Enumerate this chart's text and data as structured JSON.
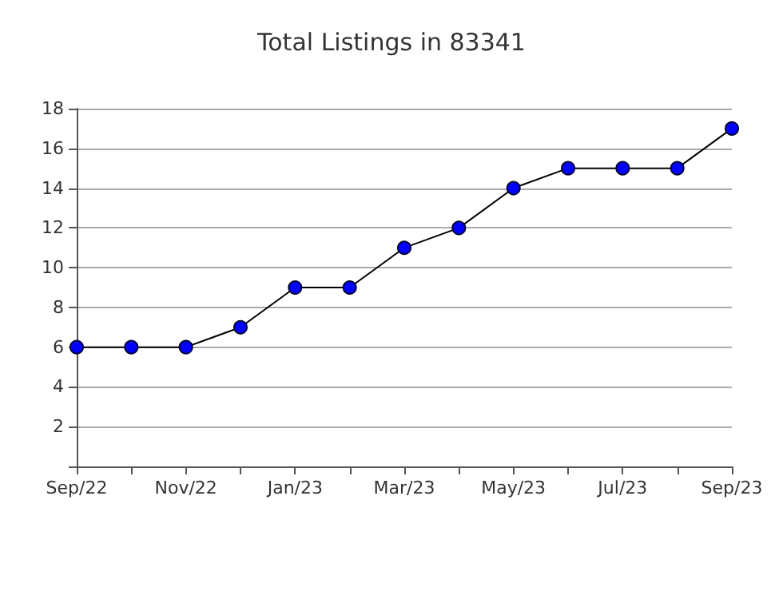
{
  "chart_data": {
    "type": "line",
    "title": "Total Listings in 83341",
    "categories": [
      "Sep/22",
      null,
      "Nov/22",
      null,
      "Jan/23",
      null,
      "Mar/23",
      null,
      "May/23",
      null,
      "Jul/23",
      null,
      "Sep/23"
    ],
    "series": [
      {
        "color": "#0000ff",
        "values": [
          6,
          6,
          6,
          7,
          9,
          9,
          11,
          12,
          14,
          15,
          15,
          15,
          17
        ]
      }
    ],
    "ylim": [
      0,
      18
    ],
    "yticks": [
      {
        "value": 0,
        "label": null
      },
      2,
      4,
      6,
      8,
      10,
      12,
      14,
      16,
      18
    ],
    "grid": "y",
    "marker": "circle",
    "line_style": "solid"
  }
}
